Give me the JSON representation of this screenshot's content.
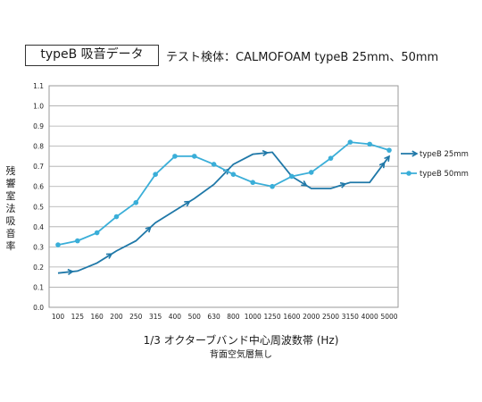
{
  "header": {
    "box_label": "typeB 吸音データ",
    "test_label": "テスト検体：CALMOFOAM typeB 25mm、50mm"
  },
  "chart_data": {
    "type": "line",
    "ylabel": "残響室法吸音率",
    "xlabel": "1/3 オクターブバンド中心周波数帯 (Hz)",
    "xsublabel": "背面空気層無し",
    "categories": [
      "100",
      "125",
      "160",
      "200",
      "250",
      "315",
      "400",
      "500",
      "630",
      "800",
      "1000",
      "1250",
      "1600",
      "2000",
      "2500",
      "3150",
      "4000",
      "5000"
    ],
    "y_ticks": [
      "0.0",
      "0.1",
      "0.2",
      "0.3",
      "0.4",
      "0.5",
      "0.6",
      "0.7",
      "0.8",
      "0.9",
      "1.0",
      "1.1"
    ],
    "ylim": [
      0,
      1.1
    ],
    "grid": true,
    "legend_position": "right",
    "series": [
      {
        "name": "typeB 25mm",
        "color": "#1f78a8",
        "marker": "arrow",
        "values": [
          0.17,
          0.18,
          0.22,
          0.28,
          0.33,
          0.42,
          0.48,
          0.54,
          0.61,
          0.71,
          0.76,
          0.77,
          0.65,
          0.59,
          0.59,
          0.62,
          0.62,
          0.75
        ]
      },
      {
        "name": "typeB 50mm",
        "color": "#3aaed8",
        "marker": "circle",
        "values": [
          0.31,
          0.33,
          0.37,
          0.45,
          0.52,
          0.66,
          0.75,
          0.75,
          0.71,
          0.66,
          0.62,
          0.6,
          0.65,
          0.67,
          0.74,
          0.82,
          0.81,
          0.78
        ]
      }
    ]
  }
}
